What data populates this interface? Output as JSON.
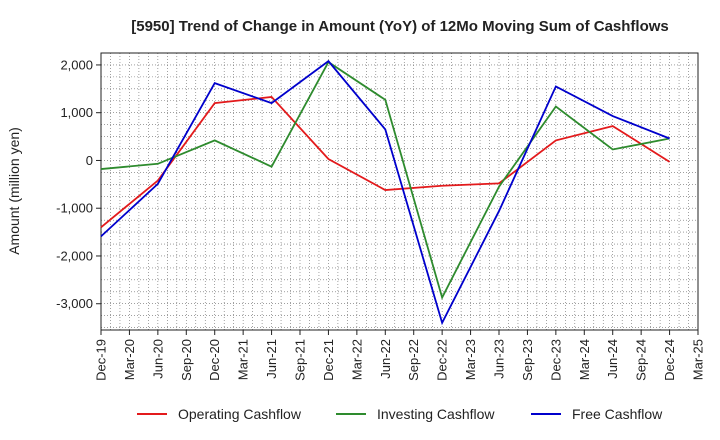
{
  "chart_data": {
    "type": "line",
    "title": "[5950]  Trend of Change in Amount (YoY) of 12Mo Moving Sum of Cashflows",
    "xlabel": "",
    "ylabel": "Amount (million yen)",
    "ylim": [
      -3550,
      2250
    ],
    "yticks": [
      2000,
      1000,
      0,
      -1000,
      -2000,
      -3000
    ],
    "ytick_labels": [
      "2,000",
      "1,000",
      "0",
      "-1,000",
      "-2,000",
      "-3,000"
    ],
    "categories": [
      "Dec-19",
      "Mar-20",
      "Jun-20",
      "Sep-20",
      "Dec-20",
      "Mar-21",
      "Jun-21",
      "Sep-21",
      "Dec-21",
      "Mar-22",
      "Jun-22",
      "Sep-22",
      "Dec-22",
      "Mar-23",
      "Jun-23",
      "Sep-23",
      "Dec-23",
      "Mar-24",
      "Jun-24",
      "Sep-24",
      "Dec-24",
      "Mar-25"
    ],
    "grid": true,
    "legend_position": "bottom",
    "series": [
      {
        "name": "Operating Cashflow",
        "color": "#e31a1c",
        "points": [
          {
            "x": "Dec-19",
            "y": -1400
          },
          {
            "x": "Jun-20",
            "y": -420
          },
          {
            "x": "Dec-20",
            "y": 1200
          },
          {
            "x": "Jun-21",
            "y": 1330
          },
          {
            "x": "Dec-21",
            "y": 30
          },
          {
            "x": "Jun-22",
            "y": -620
          },
          {
            "x": "Dec-22",
            "y": -530
          },
          {
            "x": "Jun-23",
            "y": -480
          },
          {
            "x": "Dec-23",
            "y": 420
          },
          {
            "x": "Jun-24",
            "y": 720
          },
          {
            "x": "Dec-24",
            "y": -30
          }
        ]
      },
      {
        "name": "Investing Cashflow",
        "color": "#2e8b2e",
        "points": [
          {
            "x": "Dec-19",
            "y": -180
          },
          {
            "x": "Jun-20",
            "y": -70
          },
          {
            "x": "Dec-20",
            "y": 420
          },
          {
            "x": "Jun-21",
            "y": -130
          },
          {
            "x": "Dec-21",
            "y": 2060
          },
          {
            "x": "Jun-22",
            "y": 1270
          },
          {
            "x": "Dec-22",
            "y": -2870
          },
          {
            "x": "Jun-23",
            "y": -550
          },
          {
            "x": "Dec-23",
            "y": 1130
          },
          {
            "x": "Jun-24",
            "y": 230
          },
          {
            "x": "Dec-24",
            "y": 460
          }
        ]
      },
      {
        "name": "Free Cashflow",
        "color": "#0000cc",
        "points": [
          {
            "x": "Dec-19",
            "y": -1590
          },
          {
            "x": "Jun-20",
            "y": -490
          },
          {
            "x": "Dec-20",
            "y": 1620
          },
          {
            "x": "Jun-21",
            "y": 1200
          },
          {
            "x": "Dec-21",
            "y": 2080
          },
          {
            "x": "Jun-22",
            "y": 650
          },
          {
            "x": "Dec-22",
            "y": -3400
          },
          {
            "x": "Jun-23",
            "y": -1060
          },
          {
            "x": "Dec-23",
            "y": 1550
          },
          {
            "x": "Jun-24",
            "y": 930
          },
          {
            "x": "Dec-24",
            "y": 460
          }
        ]
      }
    ]
  }
}
